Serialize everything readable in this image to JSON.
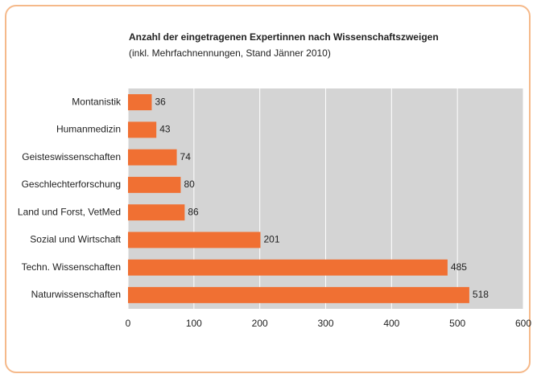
{
  "chart_data": {
    "type": "bar",
    "orientation": "horizontal",
    "title": "Anzahl der eingetragenen Expertinnen nach Wissenschaftszweigen",
    "subtitle": "(inkl. Mehrfachnennungen, Stand Jänner 2010)",
    "categories": [
      "Montanistik",
      "Humanmedizin",
      "Geisteswissenschaften",
      "Geschlechterforschung",
      "Land und Forst, VetMed",
      "Sozial und Wirtschaft",
      "Techn. Wissenschaften",
      "Naturwissenschaften"
    ],
    "values": [
      36,
      43,
      74,
      80,
      86,
      201,
      485,
      518
    ],
    "color": "#f07033",
    "xlim": [
      0,
      600
    ],
    "xticks": [
      0,
      100,
      200,
      300,
      400,
      500,
      600
    ],
    "grid": true
  }
}
